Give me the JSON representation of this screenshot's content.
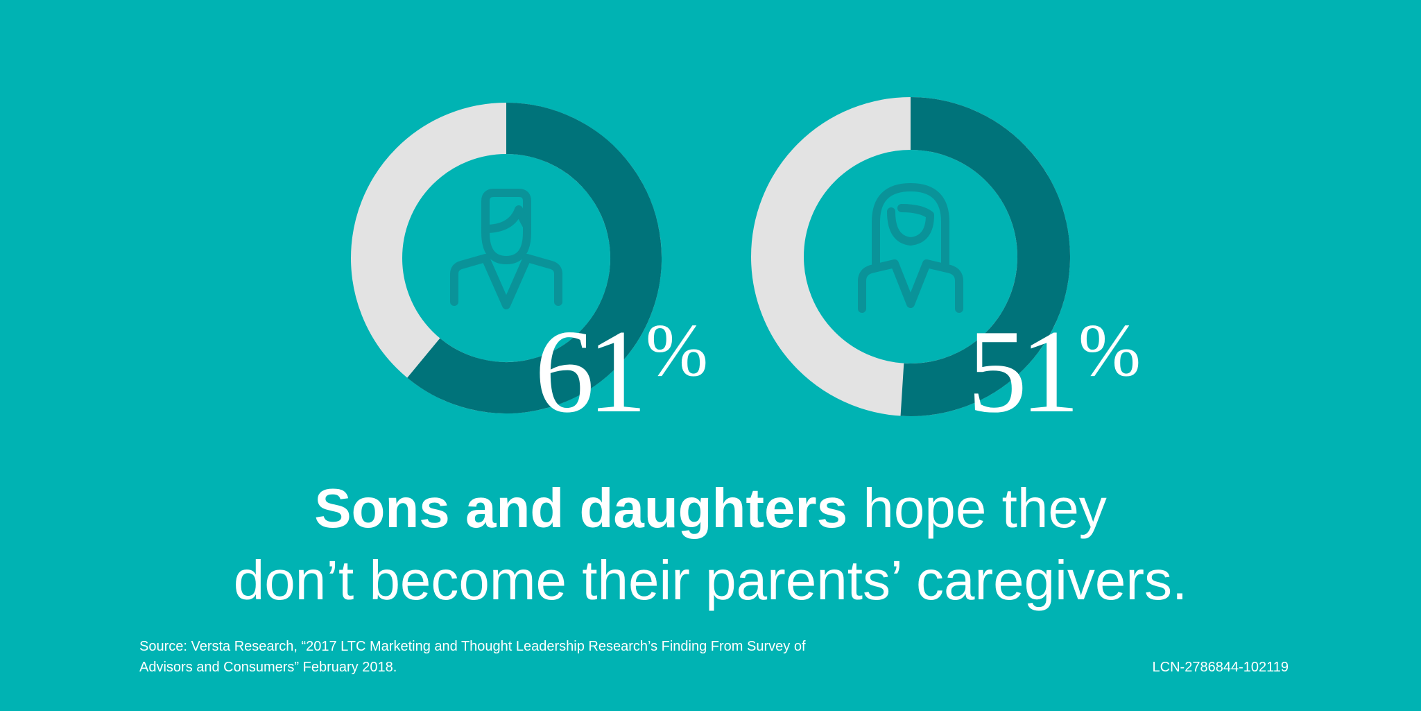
{
  "colors": {
    "background": "#00b3b3",
    "ring_filled": "#00737a",
    "ring_remainder": "#e3e3e3",
    "icon": "#0a9399",
    "text": "#ffffff"
  },
  "chart_data": [
    {
      "type": "pie",
      "style": "donut",
      "icon": "man-icon",
      "values": [
        61,
        39
      ],
      "label_value": "61",
      "label_unit": "%"
    },
    {
      "type": "pie",
      "style": "donut",
      "icon": "woman-icon",
      "values": [
        51,
        49
      ],
      "label_value": "51",
      "label_unit": "%"
    }
  ],
  "headline": {
    "line1_bold": "Sons and daughters",
    "line1_rest": " hope they",
    "line2": "don’t become their parents’ caregivers."
  },
  "source": {
    "line1": "Source: Versta Research, “2017 LTC Marketing and Thought Leadership Research’s Finding From Survey of",
    "line2": "Advisors and Consumers” February 2018."
  },
  "code": "LCN-2786844-102119"
}
